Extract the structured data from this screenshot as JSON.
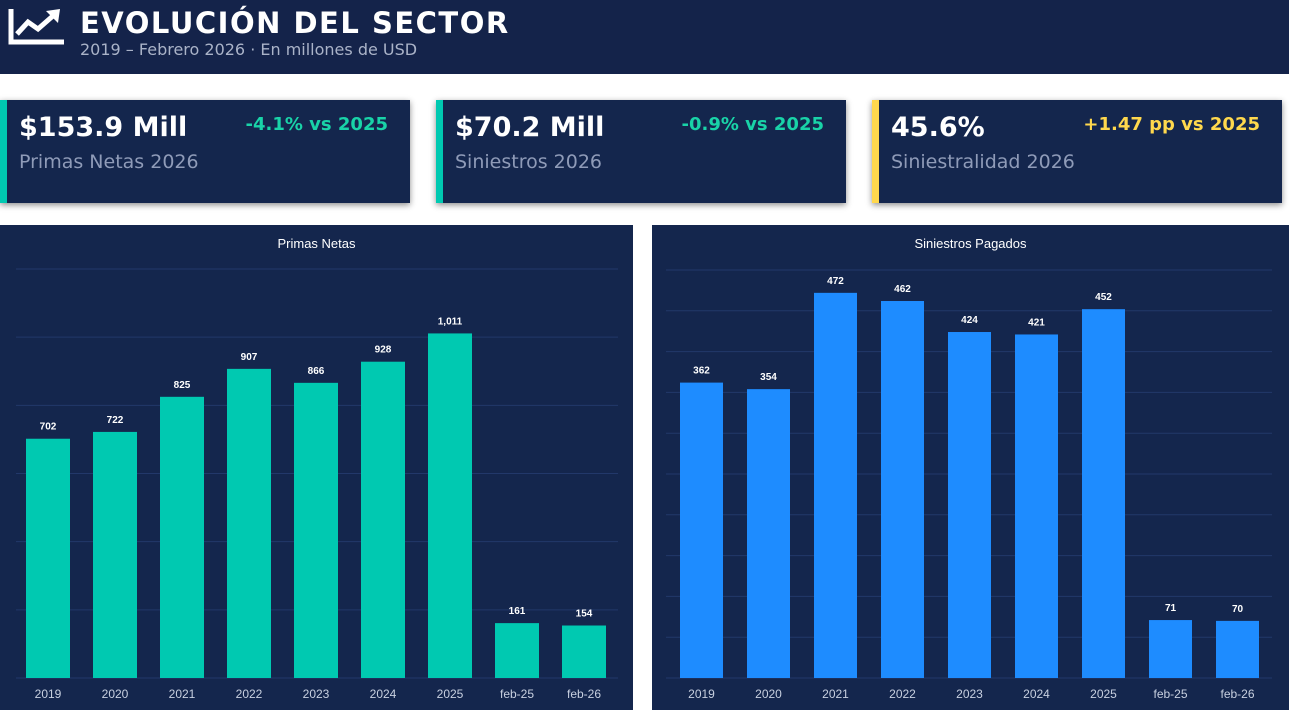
{
  "header": {
    "icon": "trend-chart-icon",
    "title": "EVOLUCIÓN DEL SECTOR",
    "subtitle": "2019 – Febrero 2026 · En millones de USD"
  },
  "kpis": [
    {
      "value": "$153.9 Mill",
      "label": "Primas Netas 2026",
      "delta": "-4.1% vs 2025",
      "accent": "#00c9b1"
    },
    {
      "value": "$70.2 Mill",
      "label": "Siniestros 2026",
      "delta": "-0.9% vs 2025",
      "accent": "#00c9b1"
    },
    {
      "value": "45.6%",
      "label": "Siniestralidad 2026",
      "delta": "+1.47 pp vs 2025",
      "accent": "#ffd84d"
    }
  ],
  "colors": {
    "background": "#14264d",
    "header": "#14234a",
    "primas_bar": "#00c9b1",
    "siniestros_bar": "#1e8cff"
  },
  "chart_data": [
    {
      "type": "bar",
      "title": "Primas Netas",
      "categories": [
        "2019",
        "2020",
        "2021",
        "2022",
        "2023",
        "2024",
        "2025",
        "feb-25",
        "feb-26"
      ],
      "values": [
        702,
        722,
        825,
        907,
        866,
        928,
        1011,
        161,
        154
      ],
      "value_labels": [
        "702",
        "722",
        "825",
        "907",
        "866",
        "928",
        "1,011",
        "161",
        "154"
      ],
      "ylim": [
        0,
        1200
      ],
      "grid": true,
      "color": "#00c9b1"
    },
    {
      "type": "bar",
      "title": "Siniestros Pagados",
      "categories": [
        "2019",
        "2020",
        "2021",
        "2022",
        "2023",
        "2024",
        "2025",
        "feb-25",
        "feb-26"
      ],
      "values": [
        362,
        354,
        472,
        462,
        424,
        421,
        452,
        71,
        70
      ],
      "value_labels": [
        "362",
        "354",
        "472",
        "462",
        "424",
        "421",
        "452",
        "71",
        "70"
      ],
      "ylim": [
        0,
        500
      ],
      "grid": true,
      "color": "#1e8cff"
    }
  ]
}
